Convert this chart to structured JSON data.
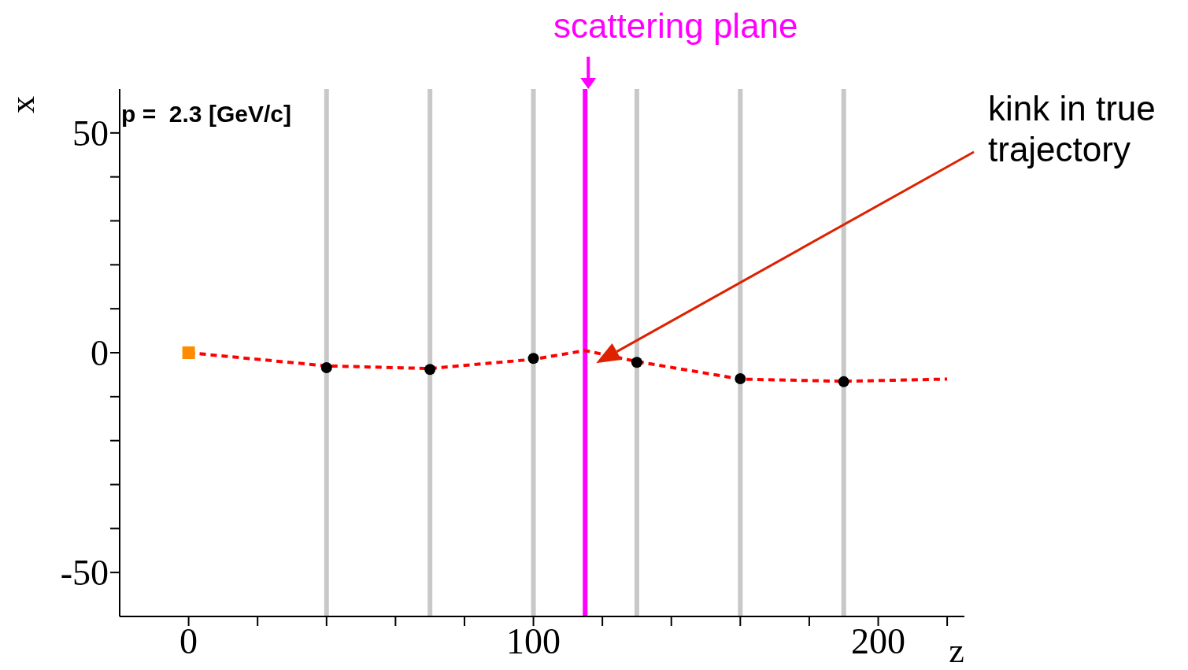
{
  "chart_data": {
    "type": "line",
    "xlabel": "z",
    "ylabel": "x",
    "xlim": [
      -20,
      225
    ],
    "ylim": [
      -60,
      60
    ],
    "xticks": [
      0,
      {
        "value": 20,
        "label": null
      },
      {
        "value": 40,
        "label": null
      },
      {
        "value": 60,
        "label": null
      },
      {
        "value": 80,
        "label": null
      },
      100,
      {
        "value": 120,
        "label": null
      },
      {
        "value": 140,
        "label": null
      },
      {
        "value": 160,
        "label": null
      },
      {
        "value": 180,
        "label": null
      },
      200,
      {
        "value": 220,
        "label": null
      }
    ],
    "yticks": [
      -50,
      {
        "value": -40,
        "label": null
      },
      {
        "value": -30,
        "label": null
      },
      {
        "value": -20,
        "label": null
      },
      {
        "value": -10,
        "label": null
      },
      0,
      {
        "value": 10,
        "label": null
      },
      {
        "value": 20,
        "label": null
      },
      {
        "value": 30,
        "label": null
      },
      {
        "value": 40,
        "label": null
      },
      50
    ],
    "ref_lines": [
      {
        "axis": "x",
        "value": 40,
        "color": "#c8c8c8"
      },
      {
        "axis": "x",
        "value": 70,
        "color": "#c8c8c8"
      },
      {
        "axis": "x",
        "value": 100,
        "color": "#c8c8c8"
      },
      {
        "axis": "x",
        "value": 130,
        "color": "#c8c8c8"
      },
      {
        "axis": "x",
        "value": 160,
        "color": "#c8c8c8"
      },
      {
        "axis": "x",
        "value": 190,
        "color": "#c8c8c8"
      },
      {
        "axis": "x",
        "value": 115,
        "color": "#ff00ff"
      }
    ],
    "series": [
      {
        "type": "line",
        "color": "#ff0000",
        "x": [
          0,
          40,
          70,
          100,
          115,
          130,
          160,
          190,
          220
        ],
        "values": [
          0,
          -3,
          -3.6,
          -1.5,
          0.5,
          -2,
          -6,
          -6.5,
          -6
        ],
        "marker": "none",
        "line_style": "dashed"
      },
      {
        "type": "scatter",
        "color": "#000000",
        "x": [
          40,
          70,
          100,
          130,
          160,
          190
        ],
        "values": [
          -3.4,
          -3.8,
          -1.3,
          -2.2,
          -5.9,
          -6.6
        ],
        "marker": "circle"
      },
      {
        "type": "scatter",
        "color": "#ff8c00",
        "x": [
          0
        ],
        "values": [
          0
        ],
        "marker": "square"
      }
    ],
    "annotations": [
      "p =  2.3 [GeV/c]",
      "scattering plane",
      "kink in true trajectory"
    ]
  }
}
